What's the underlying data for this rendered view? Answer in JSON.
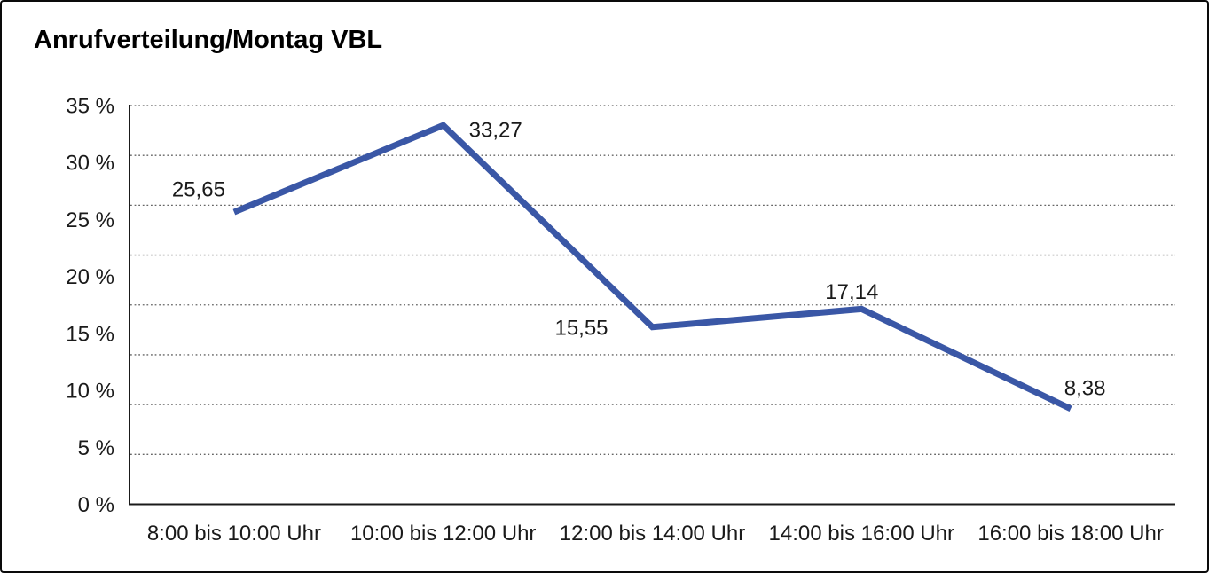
{
  "window": {
    "background_color": "#ffffff",
    "border_color": "#0a0a0a"
  },
  "chart_data": {
    "type": "line",
    "title": "Anrufverteilung/Montag VBL",
    "categories": [
      "8:00 bis 10:00 Uhr",
      "10:00 bis 12:00 Uhr",
      "12:00 bis 14:00 Uhr",
      "14:00 bis 16:00 Uhr",
      "16:00 bis 18:00 Uhr"
    ],
    "values": [
      25.65,
      33.27,
      15.55,
      17.14,
      8.38
    ],
    "point_labels": [
      "25,65",
      "33,27",
      "15,55",
      "17,14",
      "8,38"
    ],
    "yticks": [
      {
        "value": 0,
        "label": "0 %"
      },
      {
        "value": 5,
        "label": "5 %"
      },
      {
        "value": 10,
        "label": "10 %"
      },
      {
        "value": 15,
        "label": "15 %"
      },
      {
        "value": 20,
        "label": "20 %"
      },
      {
        "value": 25,
        "label": "25 %"
      },
      {
        "value": 30,
        "label": "30 %"
      },
      {
        "value": 35,
        "label": "35 %"
      }
    ],
    "ylim": [
      0,
      35
    ],
    "xlabel": "",
    "ylabel": "",
    "legend": "none",
    "grid": {
      "style": "dotted",
      "horizontal_divisions": 8,
      "color": "#666666"
    },
    "line_color": "#3A57A6",
    "axis_color": "#1a1a1a",
    "decimal_separator": ","
  }
}
